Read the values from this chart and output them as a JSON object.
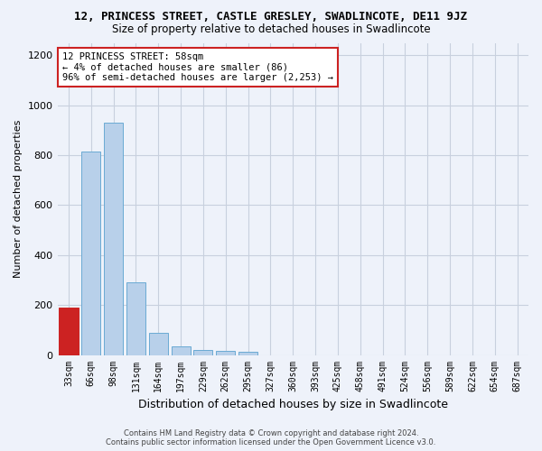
{
  "title": "12, PRINCESS STREET, CASTLE GRESLEY, SWADLINCOTE, DE11 9JZ",
  "subtitle": "Size of property relative to detached houses in Swadlincote",
  "xlabel": "Distribution of detached houses by size in Swadlincote",
  "ylabel": "Number of detached properties",
  "bin_labels": [
    "33sqm",
    "66sqm",
    "98sqm",
    "131sqm",
    "164sqm",
    "197sqm",
    "229sqm",
    "262sqm",
    "295sqm",
    "327sqm",
    "360sqm",
    "393sqm",
    "425sqm",
    "458sqm",
    "491sqm",
    "524sqm",
    "556sqm",
    "589sqm",
    "622sqm",
    "654sqm",
    "687sqm"
  ],
  "bar_values": [
    190,
    815,
    930,
    290,
    90,
    35,
    20,
    15,
    12,
    0,
    0,
    0,
    0,
    0,
    0,
    0,
    0,
    0,
    0,
    0,
    0
  ],
  "bar_color": "#b8d0ea",
  "bar_edge_color": "#6aaad4",
  "highlight_bar_index": 0,
  "highlight_color": "#cc2222",
  "highlight_edge_color": "#cc2222",
  "annotation_title": "12 PRINCESS STREET: 58sqm",
  "annotation_line1": "← 4% of detached houses are smaller (86)",
  "annotation_line2": "96% of semi-detached houses are larger (2,253) →",
  "ylim": [
    0,
    1250
  ],
  "yticks": [
    0,
    200,
    400,
    600,
    800,
    1000,
    1200
  ],
  "footer_line1": "Contains HM Land Registry data © Crown copyright and database right 2024.",
  "footer_line2": "Contains public sector information licensed under the Open Government Licence v3.0.",
  "bg_color": "#eef2fa",
  "grid_color": "#c8d0de"
}
